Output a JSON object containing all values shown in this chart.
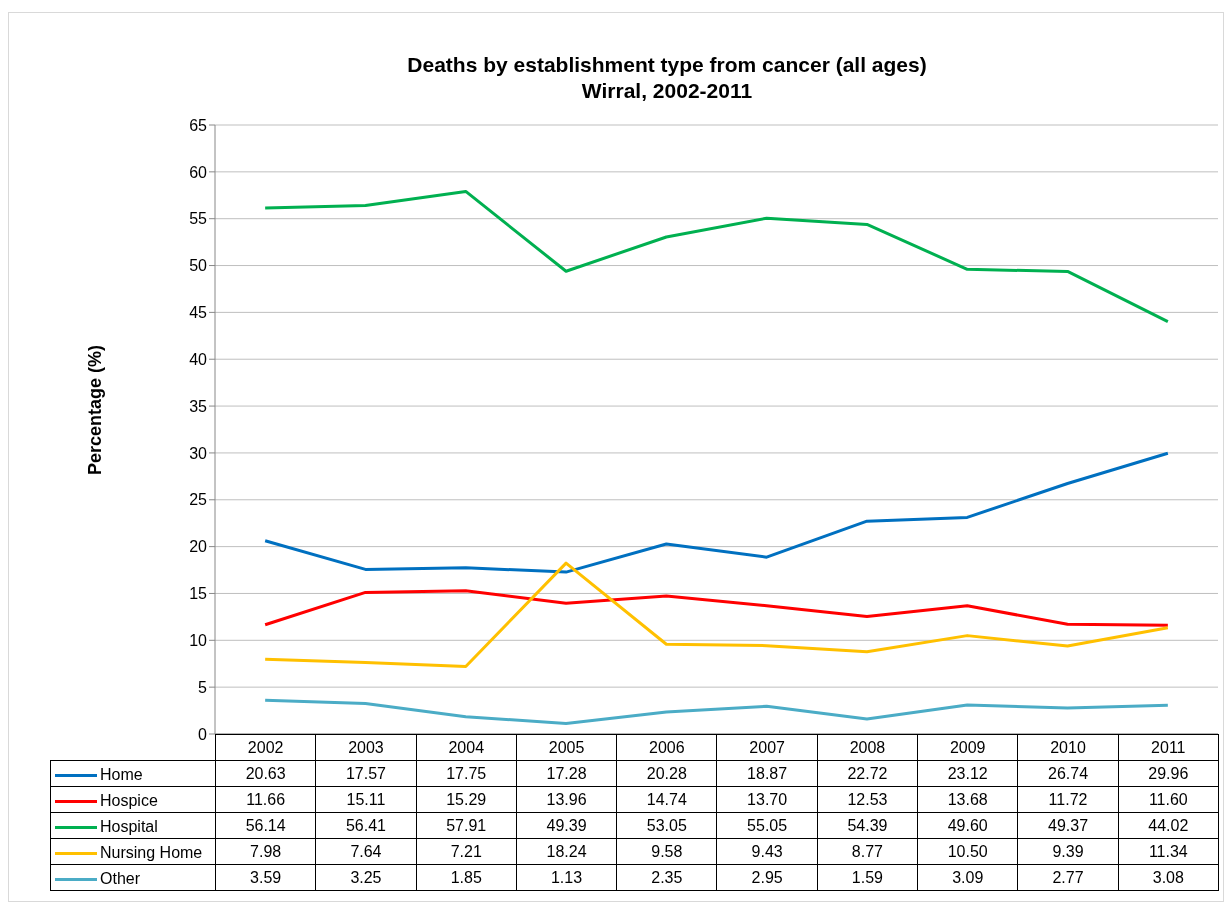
{
  "chart_data": {
    "type": "line",
    "title": "Deaths by establishment type from cancer (all ages)",
    "subtitle": "Wirral, 2002-2011",
    "ylabel": "Percentage (%)",
    "categories": [
      "2002",
      "2003",
      "2004",
      "2005",
      "2006",
      "2007",
      "2008",
      "2009",
      "2010",
      "2011"
    ],
    "series": [
      {
        "name": "Home",
        "color": "#0070c0",
        "values": [
          20.63,
          17.57,
          17.75,
          17.28,
          20.28,
          18.87,
          22.72,
          23.12,
          26.74,
          29.96
        ],
        "value_labels": [
          "20.63",
          "17.57",
          "17.75",
          "17.28",
          "20.28",
          "18.87",
          "22.72",
          "23.12",
          "26.74",
          "29.96"
        ]
      },
      {
        "name": "Hospice",
        "color": "#ff0000",
        "values": [
          11.66,
          15.11,
          15.29,
          13.96,
          14.74,
          13.7,
          12.53,
          13.68,
          11.72,
          11.6
        ],
        "value_labels": [
          "11.66",
          "15.11",
          "15.29",
          "13.96",
          "14.74",
          "13.70",
          "12.53",
          "13.68",
          "11.72",
          "11.60"
        ]
      },
      {
        "name": "Hospital",
        "color": "#00b050",
        "values": [
          56.14,
          56.41,
          57.91,
          49.39,
          53.05,
          55.05,
          54.39,
          49.6,
          49.37,
          44.02
        ],
        "value_labels": [
          "56.14",
          "56.41",
          "57.91",
          "49.39",
          "53.05",
          "55.05",
          "54.39",
          "49.60",
          "49.37",
          "44.02"
        ]
      },
      {
        "name": "Nursing Home",
        "color": "#ffc000",
        "values": [
          7.98,
          7.64,
          7.21,
          18.24,
          9.58,
          9.43,
          8.77,
          10.5,
          9.39,
          11.34
        ],
        "value_labels": [
          "7.98",
          "7.64",
          "7.21",
          "18.24",
          "9.58",
          "9.43",
          "8.77",
          "10.50",
          "9.39",
          "11.34"
        ]
      },
      {
        "name": "Other",
        "color": "#4bacc6",
        "values": [
          3.59,
          3.25,
          1.85,
          1.13,
          2.35,
          2.95,
          1.59,
          3.09,
          2.77,
          3.08
        ],
        "value_labels": [
          "3.59",
          "3.25",
          "1.85",
          "1.13",
          "2.35",
          "2.95",
          "1.59",
          "3.09",
          "2.77",
          "3.08"
        ]
      }
    ],
    "ylim": [
      0,
      65
    ],
    "yticks": [
      0,
      5,
      10,
      15,
      20,
      25,
      30,
      35,
      40,
      45,
      50,
      55,
      60,
      65
    ],
    "grid": "y",
    "legend": "bottom",
    "marker": "none",
    "line_style": "solid"
  }
}
